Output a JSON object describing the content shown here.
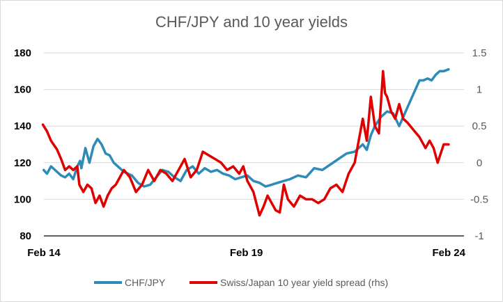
{
  "chart_data": {
    "type": "line",
    "title": "CHF/JPY and 10 year yields",
    "x_ticks": [
      "Feb 14",
      "Feb 19",
      "Feb 24"
    ],
    "x_tick_positions": [
      2014.125,
      2019.125,
      2024.125
    ],
    "x_range": [
      2014.125,
      2024.5
    ],
    "y_left": {
      "range": [
        80,
        180
      ],
      "ticks": [
        "80",
        "100",
        "120",
        "140",
        "160",
        "180"
      ]
    },
    "y_right": {
      "range": [
        -1,
        1.5
      ],
      "ticks": [
        "-1",
        "-0.5",
        "0",
        "0.5",
        "1",
        "1.5"
      ]
    },
    "grid": "horizontal",
    "legend_position": "bottom",
    "series": [
      {
        "name": "CHF/JPY",
        "axis": "left",
        "color": "#2e8bb8",
        "x": [
          2014.12,
          2014.2,
          2014.3,
          2014.45,
          2014.55,
          2014.65,
          2014.75,
          2014.85,
          2014.95,
          2015.02,
          2015.05,
          2015.15,
          2015.25,
          2015.35,
          2015.45,
          2015.55,
          2015.65,
          2015.75,
          2015.85,
          2016.0,
          2016.1,
          2016.2,
          2016.3,
          2016.45,
          2016.6,
          2016.75,
          2016.9,
          2017.05,
          2017.2,
          2017.35,
          2017.5,
          2017.65,
          2017.8,
          2017.95,
          2018.1,
          2018.25,
          2018.4,
          2018.55,
          2018.7,
          2018.85,
          2019.0,
          2019.15,
          2019.3,
          2019.45,
          2019.6,
          2019.75,
          2019.9,
          2020.05,
          2020.2,
          2020.4,
          2020.6,
          2020.8,
          2021.0,
          2021.2,
          2021.4,
          2021.6,
          2021.8,
          2022.0,
          2022.1,
          2022.2,
          2022.3,
          2022.45,
          2022.6,
          2022.75,
          2022.9,
          2023.0,
          2023.1,
          2023.2,
          2023.3,
          2023.4,
          2023.5,
          2023.6,
          2023.7,
          2023.8,
          2023.9,
          2024.0,
          2024.12
        ],
        "values": [
          116,
          114,
          118,
          115,
          113,
          112,
          114,
          111,
          118,
          121,
          117,
          128,
          120,
          129,
          133,
          130,
          125,
          124,
          120,
          117,
          115,
          114,
          113,
          109,
          107,
          108,
          112,
          116,
          115,
          112,
          110,
          116,
          118,
          114,
          117,
          115,
          116,
          114,
          113,
          111,
          112,
          113,
          110,
          109,
          107,
          108,
          109,
          110,
          111,
          113,
          112,
          117,
          116,
          119,
          122,
          125,
          126,
          130,
          127,
          135,
          140,
          145,
          148,
          147,
          140,
          145,
          150,
          155,
          160,
          165,
          165,
          166,
          165,
          168,
          170,
          170,
          171
        ],
        "label_position": "none"
      },
      {
        "name": "Swiss/Japan 10 year yield spread (rhs)",
        "axis": "right",
        "color": "#e00000",
        "x": [
          2014.1,
          2014.2,
          2014.3,
          2014.45,
          2014.55,
          2014.65,
          2014.75,
          2014.85,
          2014.95,
          2015.0,
          2015.1,
          2015.2,
          2015.3,
          2015.4,
          2015.5,
          2015.6,
          2015.7,
          2015.8,
          2015.9,
          2016.0,
          2016.1,
          2016.25,
          2016.4,
          2016.55,
          2016.7,
          2016.85,
          2017.0,
          2017.15,
          2017.3,
          2017.45,
          2017.6,
          2017.75,
          2017.9,
          2018.05,
          2018.2,
          2018.35,
          2018.5,
          2018.65,
          2018.8,
          2018.95,
          2019.05,
          2019.15,
          2019.3,
          2019.45,
          2019.55,
          2019.65,
          2019.75,
          2019.85,
          2019.95,
          2020.05,
          2020.15,
          2020.3,
          2020.45,
          2020.6,
          2020.75,
          2020.9,
          2021.05,
          2021.2,
          2021.35,
          2021.5,
          2021.65,
          2021.8,
          2022.0,
          2022.1,
          2022.2,
          2022.3,
          2022.4,
          2022.5,
          2022.55,
          2022.6,
          2022.7,
          2022.8,
          2022.9,
          2023.0,
          2023.1,
          2023.25,
          2023.4,
          2023.55,
          2023.65,
          2023.75,
          2023.85,
          2024.0,
          2024.12
        ],
        "values": [
          0.52,
          0.43,
          0.3,
          0.18,
          0.05,
          -0.1,
          -0.05,
          -0.1,
          -0.05,
          -0.3,
          -0.4,
          -0.3,
          -0.35,
          -0.55,
          -0.45,
          -0.6,
          -0.45,
          -0.35,
          -0.3,
          -0.2,
          -0.1,
          -0.2,
          -0.4,
          -0.3,
          -0.1,
          -0.25,
          -0.1,
          -0.15,
          -0.25,
          -0.1,
          0.05,
          -0.2,
          -0.1,
          0.15,
          0.1,
          0.05,
          0.0,
          -0.1,
          -0.05,
          -0.15,
          -0.05,
          -0.25,
          -0.4,
          -0.72,
          -0.6,
          -0.45,
          -0.55,
          -0.65,
          -0.68,
          -0.3,
          -0.5,
          -0.6,
          -0.45,
          -0.5,
          -0.5,
          -0.55,
          -0.5,
          -0.35,
          -0.3,
          -0.4,
          -0.15,
          0.0,
          0.6,
          0.3,
          0.9,
          0.5,
          0.4,
          1.25,
          0.95,
          0.9,
          0.7,
          0.6,
          0.8,
          0.6,
          0.55,
          0.45,
          0.35,
          0.2,
          0.3,
          0.2,
          0.0,
          0.25,
          0.25
        ],
        "label_position": "none"
      }
    ]
  }
}
